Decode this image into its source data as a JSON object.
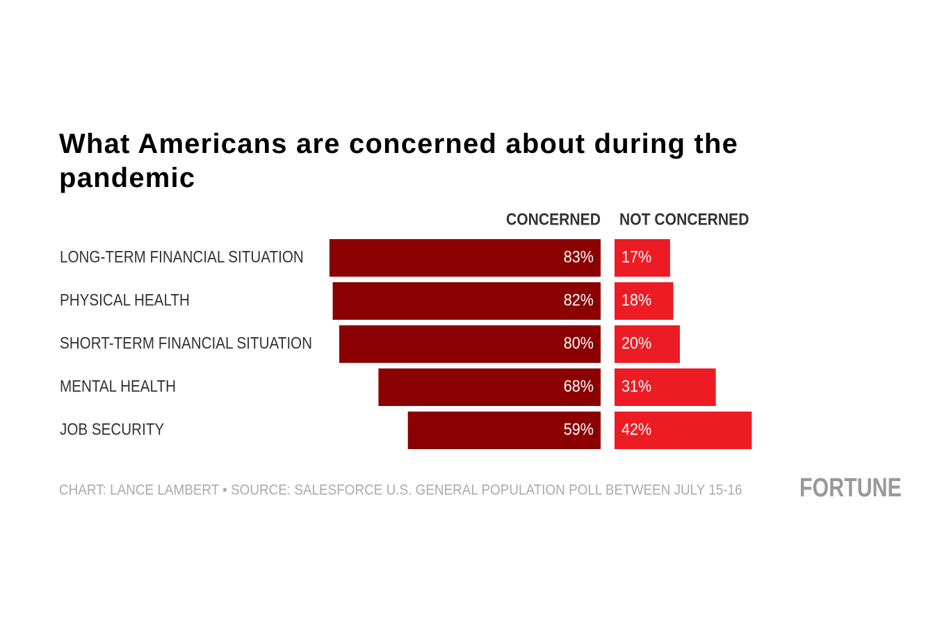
{
  "chart_data": {
    "type": "diverging-bar",
    "title": "What Americans are concerned about during the pandemic",
    "categories": [
      "LONG-TERM FINANCIAL SITUATION",
      "PHYSICAL HEALTH",
      "SHORT-TERM FINANCIAL SITUATION",
      "MENTAL HEALTH",
      "JOB SECURITY"
    ],
    "series": [
      {
        "name": "CONCERNED",
        "color": "#8b0000",
        "values": [
          83,
          82,
          80,
          68,
          59
        ],
        "value_labels": [
          "83%",
          "82%",
          "80%",
          "68%",
          "59%"
        ]
      },
      {
        "name": "NOT CONCERNED",
        "color": "#ed1c24",
        "values": [
          17,
          18,
          20,
          31,
          42
        ],
        "value_labels": [
          "17%",
          "18%",
          "20%",
          "31%",
          "42%"
        ]
      }
    ],
    "footer": "CHART: LANCE LAMBERT • SOURCE: SALESFORCE U.S. GENERAL POPULATION POLL BETWEEN JULY 15-16",
    "brand": "FORTUNE"
  }
}
